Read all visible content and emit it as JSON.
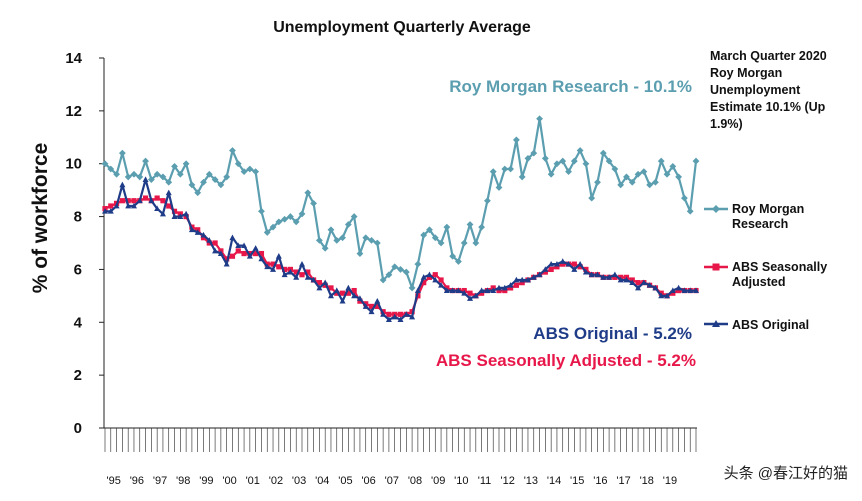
{
  "chart_data": {
    "type": "line",
    "title": "Unemployment Quarterly Average",
    "ylabel": "% of workforce",
    "xlabel": "",
    "ylim": [
      0,
      14
    ],
    "yticks": [
      "0",
      "2",
      "4",
      "6",
      "8",
      "10",
      "12",
      "14"
    ],
    "grid": false,
    "legend_position": "right",
    "x_year_labels": [
      "'95",
      "'96",
      "'97",
      "'98",
      "'99",
      "'00",
      "'01",
      "'02",
      "'03",
      "'04",
      "'05",
      "'06",
      "'07",
      "'08",
      "'09",
      "'10",
      "'11",
      "'12",
      "'13",
      "'14",
      "'15",
      "'16",
      "'17",
      "'18",
      "'19"
    ],
    "note": [
      "March Quarter 2020",
      "Roy Morgan",
      "Unemployment",
      "Estimate 10.1% (Up",
      "1.9%)"
    ],
    "annotations": {
      "roy_morgan": "Roy Morgan Research - 10.1%",
      "abs_original": "ABS Original - 5.2%",
      "abs_seasonally": "ABS Seasonally Adjusted - 5.2%"
    },
    "series": [
      {
        "name": "Roy Morgan Research",
        "legend_lines": [
          "Roy Morgan",
          "Research"
        ],
        "color": "#5b9eb0",
        "marker": "diamond",
        "values": [
          10.0,
          9.8,
          9.6,
          10.4,
          9.5,
          9.6,
          9.5,
          10.1,
          9.4,
          9.6,
          9.5,
          9.3,
          9.9,
          9.6,
          10.0,
          9.2,
          8.9,
          9.3,
          9.6,
          9.4,
          9.2,
          9.5,
          10.5,
          10.0,
          9.7,
          9.8,
          9.7,
          8.2,
          7.4,
          7.6,
          7.8,
          7.9,
          8.0,
          7.8,
          8.1,
          8.9,
          8.5,
          7.1,
          6.8,
          7.5,
          7.1,
          7.2,
          7.7,
          8.0,
          6.6,
          7.2,
          7.1,
          7.0,
          5.6,
          5.8,
          6.1,
          6.0,
          5.9,
          5.3,
          6.2,
          7.3,
          7.5,
          7.2,
          7.0,
          7.6,
          6.5,
          6.3,
          7.0,
          7.7,
          7.0,
          7.6,
          8.6,
          9.7,
          9.1,
          9.8,
          9.8,
          10.9,
          9.5,
          10.2,
          10.4,
          11.7,
          10.2,
          9.6,
          10.0,
          10.1,
          9.7,
          10.1,
          10.5,
          10.0,
          8.7,
          9.3,
          10.4,
          10.1,
          9.8,
          9.2,
          9.5,
          9.3,
          9.6,
          9.7,
          9.2,
          9.3,
          10.1,
          9.6,
          9.9,
          9.5,
          8.7,
          8.2,
          10.1
        ]
      },
      {
        "name": "ABS Seasonally Adjusted",
        "legend_lines": [
          "ABS Seasonally",
          "Adjusted"
        ],
        "color": "#e8174a",
        "marker": "square",
        "values": [
          8.3,
          8.4,
          8.5,
          8.6,
          8.6,
          8.6,
          8.6,
          8.7,
          8.6,
          8.7,
          8.6,
          8.4,
          8.2,
          8.1,
          8.0,
          7.6,
          7.5,
          7.2,
          7.0,
          7.0,
          6.7,
          6.4,
          6.5,
          6.7,
          6.6,
          6.6,
          6.6,
          6.6,
          6.2,
          6.2,
          6.1,
          6.0,
          6.0,
          5.9,
          5.8,
          5.9,
          5.6,
          5.5,
          5.4,
          5.3,
          5.1,
          5.1,
          5.1,
          5.2,
          4.8,
          4.7,
          4.6,
          4.6,
          4.4,
          4.3,
          4.3,
          4.3,
          4.3,
          4.4,
          5.0,
          5.5,
          5.7,
          5.8,
          5.6,
          5.3,
          5.2,
          5.2,
          5.2,
          5.1,
          5.0,
          5.1,
          5.2,
          5.3,
          5.2,
          5.2,
          5.3,
          5.4,
          5.5,
          5.6,
          5.7,
          5.8,
          5.9,
          6.0,
          6.1,
          6.2,
          6.2,
          6.2,
          6.1,
          6.0,
          5.8,
          5.8,
          5.7,
          5.7,
          5.7,
          5.7,
          5.7,
          5.6,
          5.5,
          5.5,
          5.4,
          5.3,
          5.1,
          5.0,
          5.1,
          5.2,
          5.2,
          5.2,
          5.2
        ]
      },
      {
        "name": "ABS Original",
        "legend_lines": [
          "ABS Original"
        ],
        "color": "#1f3c88",
        "marker": "triangle",
        "values": [
          8.2,
          8.2,
          8.4,
          9.2,
          8.4,
          8.4,
          8.6,
          9.4,
          8.6,
          8.3,
          8.1,
          8.9,
          8.0,
          8.0,
          8.1,
          7.5,
          7.4,
          7.3,
          7.1,
          6.7,
          6.6,
          6.2,
          7.2,
          6.9,
          6.9,
          6.5,
          6.8,
          6.4,
          6.1,
          6.0,
          6.5,
          5.8,
          5.9,
          5.7,
          6.2,
          5.7,
          5.6,
          5.3,
          5.5,
          5.0,
          5.2,
          4.8,
          5.3,
          5.0,
          4.9,
          4.6,
          4.4,
          4.8,
          4.3,
          4.1,
          4.2,
          4.1,
          4.3,
          4.2,
          5.2,
          5.7,
          5.8,
          5.6,
          5.4,
          5.2,
          5.2,
          5.2,
          5.1,
          4.9,
          5.0,
          5.2,
          5.2,
          5.2,
          5.3,
          5.3,
          5.4,
          5.6,
          5.6,
          5.6,
          5.7,
          5.8,
          6.0,
          6.2,
          6.2,
          6.3,
          6.2,
          6.0,
          6.2,
          5.9,
          5.8,
          5.8,
          5.7,
          5.7,
          5.8,
          5.6,
          5.6,
          5.5,
          5.3,
          5.5,
          5.4,
          5.3,
          5.0,
          5.0,
          5.2,
          5.3,
          5.2,
          5.2,
          5.2
        ]
      }
    ]
  },
  "watermark": "头条 @春江好的猫"
}
